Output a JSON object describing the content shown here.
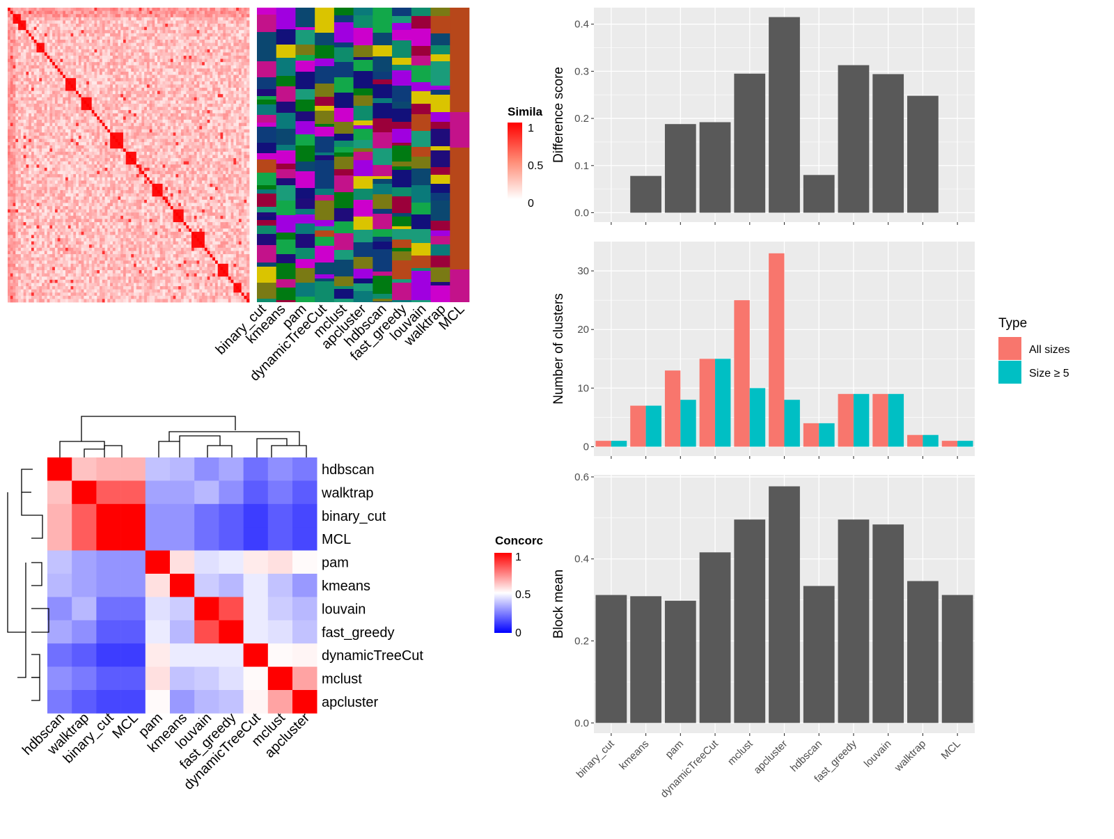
{
  "colors": {
    "panel_bg": "#EBEBEB",
    "grid": "#FFFFFF",
    "bar_dark": "#595959",
    "all_sizes": "#F8766D",
    "size5": "#00BFC4",
    "sim_high": "#FF0000",
    "conc_low": "#0000FF"
  },
  "chart_data": [
    {
      "id": "similarity_heatmap",
      "type": "heatmap",
      "legend_title": "Simila",
      "legend_ticks": [
        "1",
        "0.5",
        "0"
      ],
      "method_labels": [
        "binary_cut",
        "kmeans",
        "pam",
        "dynamicTreeCut",
        "mclust",
        "apcluster",
        "hdbscan",
        "fast_greedy",
        "louvain",
        "walktrap",
        "MCL"
      ],
      "color_range": [
        "#FFFFFF",
        "#FF0000"
      ]
    },
    {
      "id": "difference_score",
      "type": "bar",
      "ylabel": "Difference score",
      "categories": [
        "binary_cut",
        "kmeans",
        "pam",
        "dynamicTreeCut",
        "mclust",
        "apcluster",
        "hdbscan",
        "fast_greedy",
        "louvain",
        "walktrap",
        "MCL"
      ],
      "values": [
        0.0,
        0.078,
        0.188,
        0.192,
        0.295,
        0.415,
        0.08,
        0.313,
        0.294,
        0.248,
        0.0
      ],
      "ylim": [
        -0.02,
        0.435
      ],
      "yticks": [
        "0.0",
        "0.1",
        "0.2",
        "0.3",
        "0.4"
      ],
      "grid": true
    },
    {
      "id": "number_of_clusters",
      "type": "bar",
      "ylabel": "Number of clusters",
      "legend_title": "Type",
      "categories": [
        "binary_cut",
        "kmeans",
        "pam",
        "dynamicTreeCut",
        "mclust",
        "apcluster",
        "hdbscan",
        "fast_greedy",
        "louvain",
        "walktrap",
        "MCL"
      ],
      "series": [
        {
          "name": "All sizes",
          "values": [
            1,
            7,
            13,
            15,
            25,
            33,
            4,
            9,
            9,
            2,
            1
          ]
        },
        {
          "name": "Size ≥ 5",
          "values": [
            1,
            7,
            8,
            15,
            10,
            8,
            4,
            9,
            9,
            2,
            1
          ]
        }
      ],
      "ylim": [
        -1.6,
        35
      ],
      "yticks": [
        "0",
        "10",
        "20",
        "30"
      ],
      "grid": true
    },
    {
      "id": "block_mean",
      "type": "bar",
      "ylabel": "Block mean",
      "categories": [
        "binary_cut",
        "kmeans",
        "pam",
        "dynamicTreeCut",
        "mclust",
        "apcluster",
        "hdbscan",
        "fast_greedy",
        "louvain",
        "walktrap",
        "MCL"
      ],
      "values": [
        0.312,
        0.309,
        0.298,
        0.416,
        0.496,
        0.577,
        0.334,
        0.496,
        0.484,
        0.346,
        0.312
      ],
      "ylim": [
        -0.025,
        0.605
      ],
      "yticks": [
        "0.0",
        "0.2",
        "0.4",
        "0.6"
      ],
      "grid": true
    },
    {
      "id": "concordance_heatmap",
      "type": "heatmap",
      "legend_title": "Concorc",
      "legend_ticks": [
        "1",
        "0.5",
        "0"
      ],
      "row_labels": [
        "hdbscan",
        "walktrap",
        "binary_cut",
        "MCL",
        "pam",
        "kmeans",
        "louvain",
        "fast_greedy",
        "dynamicTreeCut",
        "mclust",
        "apcluster"
      ],
      "col_labels": [
        "hdbscan",
        "walktrap",
        "binary_cut",
        "MCL",
        "pam",
        "kmeans",
        "louvain",
        "fast_greedy",
        "dynamicTreeCut",
        "mclust",
        "apcluster"
      ],
      "matrix": [
        [
          1.0,
          0.62,
          0.65,
          0.65,
          0.38,
          0.36,
          0.28,
          0.33,
          0.22,
          0.28,
          0.24
        ],
        [
          0.62,
          1.0,
          0.82,
          0.82,
          0.32,
          0.32,
          0.36,
          0.28,
          0.18,
          0.24,
          0.18
        ],
        [
          0.65,
          0.82,
          1.0,
          1.0,
          0.29,
          0.29,
          0.22,
          0.18,
          0.12,
          0.18,
          0.14
        ],
        [
          0.65,
          0.82,
          1.0,
          1.0,
          0.29,
          0.29,
          0.22,
          0.18,
          0.12,
          0.18,
          0.14
        ],
        [
          0.38,
          0.32,
          0.29,
          0.29,
          1.0,
          0.56,
          0.44,
          0.46,
          0.54,
          0.56,
          0.51
        ],
        [
          0.36,
          0.32,
          0.29,
          0.29,
          0.56,
          1.0,
          0.4,
          0.36,
          0.46,
          0.38,
          0.3
        ],
        [
          0.28,
          0.36,
          0.22,
          0.22,
          0.44,
          0.4,
          1.0,
          0.85,
          0.46,
          0.4,
          0.36
        ],
        [
          0.33,
          0.28,
          0.18,
          0.18,
          0.46,
          0.36,
          0.85,
          1.0,
          0.46,
          0.44,
          0.38
        ],
        [
          0.22,
          0.18,
          0.12,
          0.12,
          0.54,
          0.46,
          0.46,
          0.46,
          1.0,
          0.51,
          0.52
        ],
        [
          0.28,
          0.24,
          0.18,
          0.18,
          0.56,
          0.38,
          0.4,
          0.44,
          0.51,
          1.0,
          0.68
        ],
        [
          0.24,
          0.18,
          0.14,
          0.14,
          0.51,
          0.3,
          0.36,
          0.38,
          0.52,
          0.68,
          1.0
        ]
      ]
    }
  ]
}
